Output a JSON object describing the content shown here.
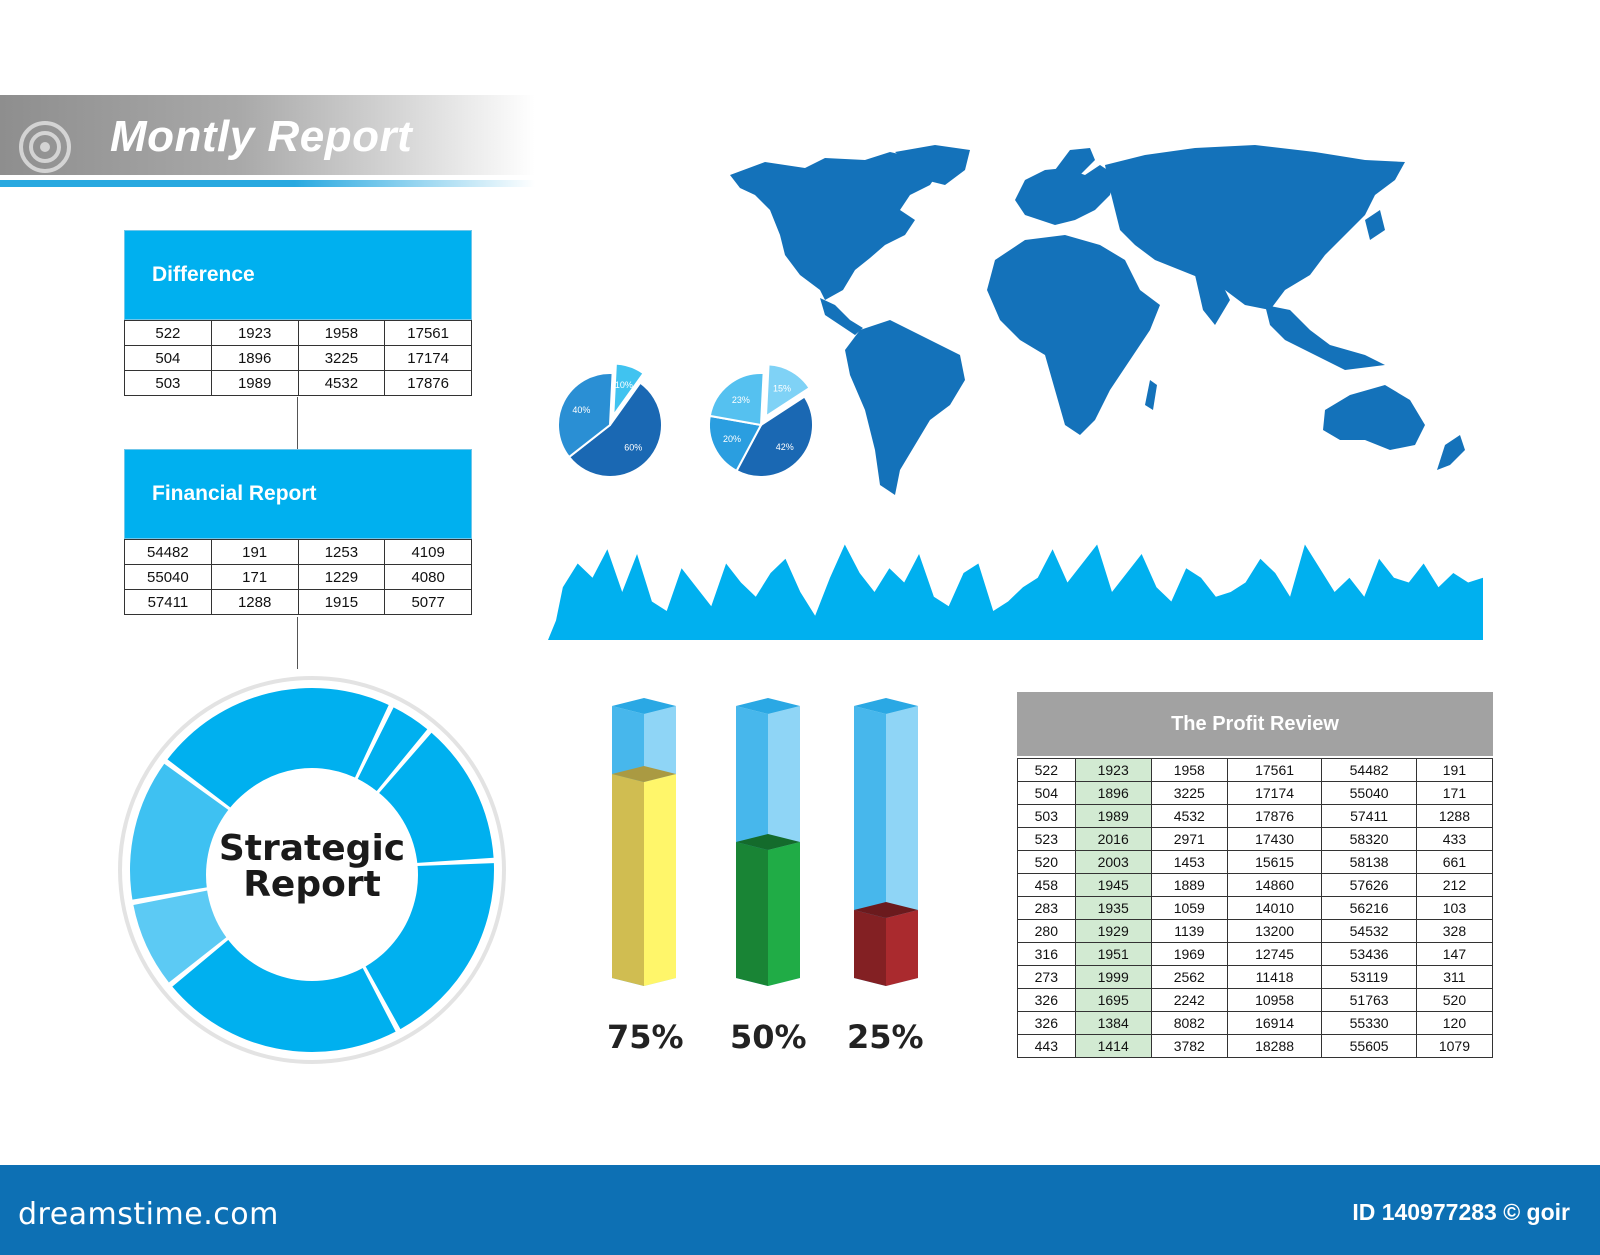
{
  "header": {
    "title": "Montly Report"
  },
  "difference": {
    "title": "Difference",
    "rows": [
      [
        "522",
        "1923",
        "1958",
        "17561"
      ],
      [
        "504",
        "1896",
        "3225",
        "17174"
      ],
      [
        "503",
        "1989",
        "4532",
        "17876"
      ]
    ]
  },
  "financial": {
    "title": "Financial Report",
    "rows": [
      [
        "54482",
        "191",
        "1253",
        "4109"
      ],
      [
        "55040",
        "171",
        "1229",
        "4080"
      ],
      [
        "57411",
        "1288",
        "1915",
        "5077"
      ]
    ]
  },
  "strategic": {
    "line1": "Strategic",
    "line2": "Report"
  },
  "profit": {
    "title": "The Profit Review",
    "rows": [
      [
        "522",
        "1923",
        "1958",
        "17561",
        "54482",
        "191"
      ],
      [
        "504",
        "1896",
        "3225",
        "17174",
        "55040",
        "171"
      ],
      [
        "503",
        "1989",
        "4532",
        "17876",
        "57411",
        "1288"
      ],
      [
        "523",
        "2016",
        "2971",
        "17430",
        "58320",
        "433"
      ],
      [
        "520",
        "2003",
        "1453",
        "15615",
        "58138",
        "661"
      ],
      [
        "458",
        "1945",
        "1889",
        "14860",
        "57626",
        "212"
      ],
      [
        "283",
        "1935",
        "1059",
        "14010",
        "56216",
        "103"
      ],
      [
        "280",
        "1929",
        "1139",
        "13200",
        "54532",
        "328"
      ],
      [
        "316",
        "1951",
        "1969",
        "12745",
        "53436",
        "147"
      ],
      [
        "273",
        "1999",
        "2562",
        "11418",
        "53119",
        "311"
      ],
      [
        "326",
        "1695",
        "2242",
        "10958",
        "51763",
        "520"
      ],
      [
        "326",
        "1384",
        "8082",
        "16914",
        "55330",
        "120"
      ],
      [
        "443",
        "1414",
        "3782",
        "18288",
        "55605",
        "1079"
      ]
    ]
  },
  "chart_data": [
    {
      "type": "pie",
      "slices": [
        {
          "label": "10%",
          "value": 10,
          "color": "#40c3f0",
          "exploded": true
        },
        {
          "label": "60%",
          "value": 60,
          "color": "#1a68b3"
        },
        {
          "label": "40%",
          "value": 40,
          "color": "#2a8fd4"
        }
      ]
    },
    {
      "type": "pie",
      "slices": [
        {
          "label": "15%",
          "value": 15,
          "color": "#7fd2f6",
          "exploded": true
        },
        {
          "label": "42%",
          "value": 42,
          "color": "#1a68b3"
        },
        {
          "label": "20%",
          "value": 20,
          "color": "#2a9ee0"
        },
        {
          "label": "23%",
          "value": 23,
          "color": "#55c1f0"
        }
      ]
    },
    {
      "type": "bar",
      "categories": [
        "75%",
        "50%",
        "25%"
      ],
      "values": [
        75,
        50,
        25
      ],
      "ylim": [
        0,
        100
      ],
      "colors": [
        "#e2cd58",
        "#1b8f3a",
        "#8e2326"
      ]
    },
    {
      "type": "area",
      "color": "#00b0ef",
      "values": [
        10,
        45,
        70,
        55,
        85,
        40,
        80,
        30,
        20,
        65,
        45,
        25,
        70,
        50,
        35,
        60,
        75,
        40,
        15,
        55,
        90,
        60,
        40,
        65,
        50,
        80,
        35,
        25,
        60,
        70,
        20,
        30,
        45,
        55,
        85,
        50,
        70,
        90,
        40,
        60,
        80,
        45,
        30,
        65,
        55,
        35,
        40,
        50,
        75,
        60,
        35,
        90,
        65,
        40,
        55,
        35,
        75,
        55,
        50,
        70,
        45,
        60,
        50,
        55
      ]
    },
    {
      "type": "pie",
      "title": "Strategic Report",
      "slices": [
        {
          "value": 4,
          "color": "#00b0ef"
        },
        {
          "value": 13,
          "color": "#00b0ef"
        },
        {
          "value": 18,
          "color": "#00b0ef"
        },
        {
          "value": 22,
          "color": "#00b0ef"
        },
        {
          "value": 8,
          "color": "#5ccaf4"
        },
        {
          "value": 13,
          "color": "#3ec1f2"
        },
        {
          "value": 22,
          "color": "#00b0ef"
        }
      ]
    }
  ],
  "footer": {
    "site": "dreamstime.com",
    "id": "ID 140977283 © goir"
  }
}
